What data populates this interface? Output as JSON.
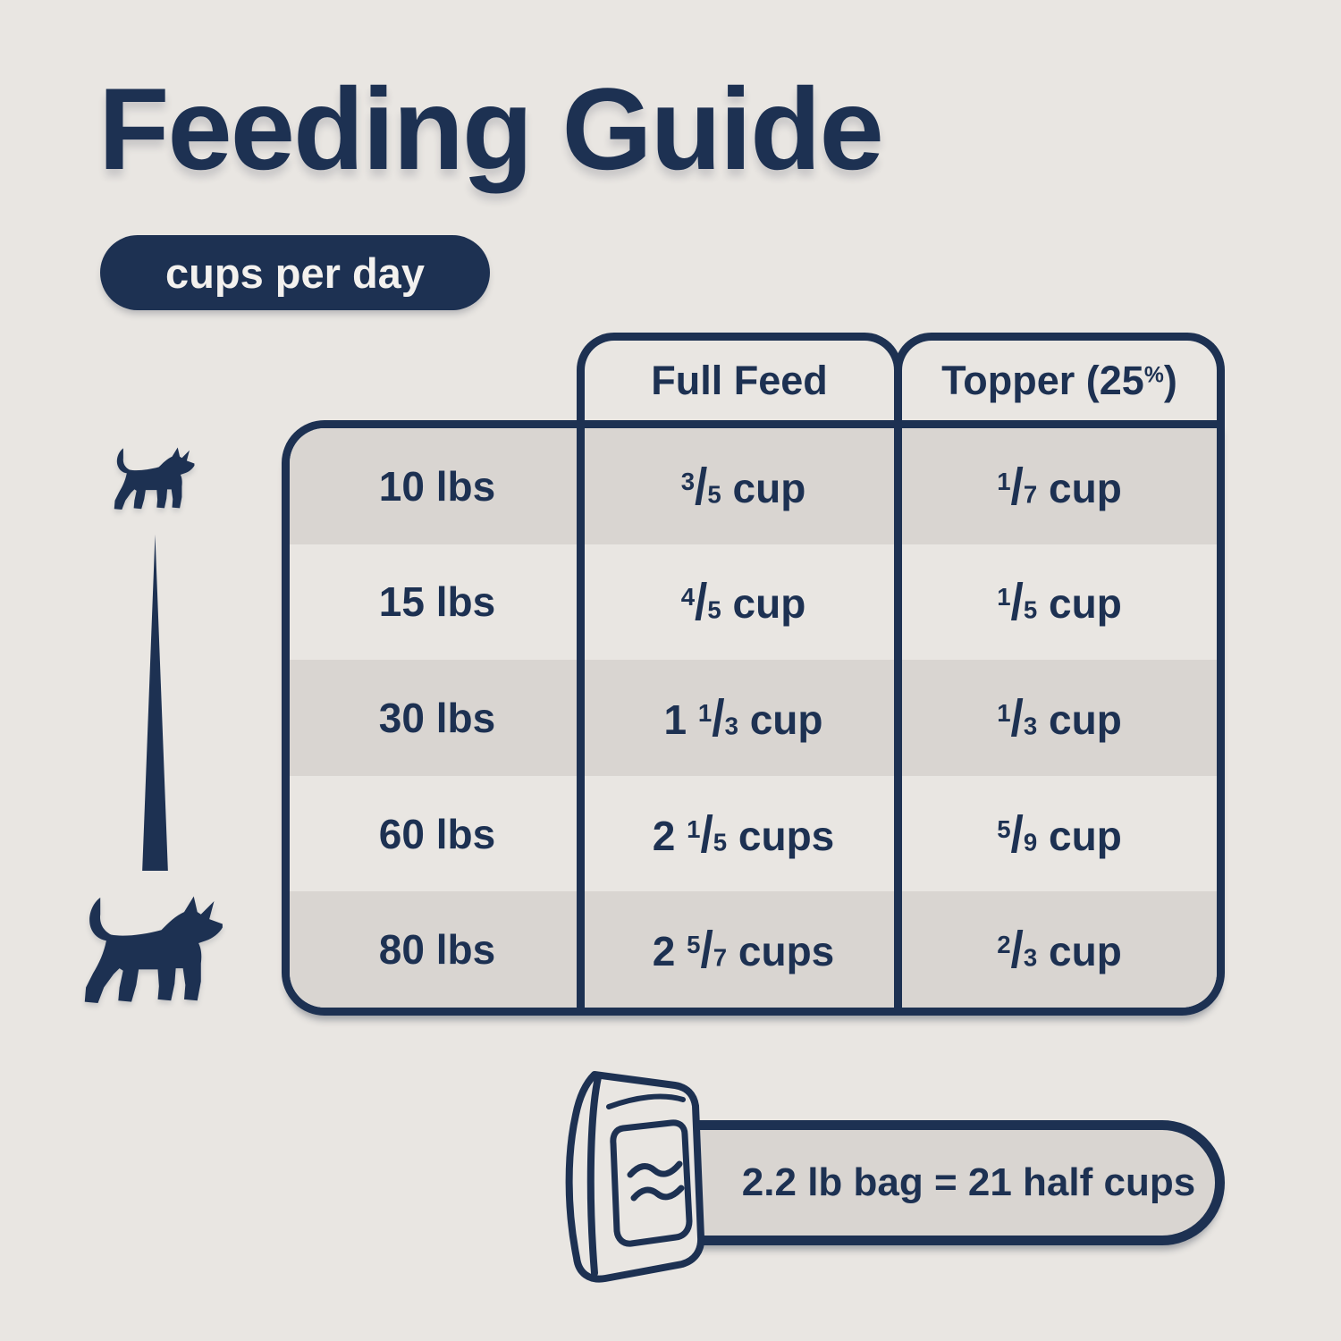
{
  "page": {
    "title": "Feeding Guide",
    "badge": "cups per day"
  },
  "table": {
    "col_headers": [
      "Full Feed",
      "Topper (25%)"
    ],
    "rows": [
      {
        "weight": "10 lbs",
        "full_feed": "3/5 cup",
        "topper": "1/7 cup"
      },
      {
        "weight": "15 lbs",
        "full_feed": "4/5 cup",
        "topper": "1/5 cup"
      },
      {
        "weight": "30 lbs",
        "full_feed": "1 1/3 cup",
        "topper": "1/3 cup"
      },
      {
        "weight": "60 lbs",
        "full_feed": "2 1/5 cups",
        "topper": "5/9 cup"
      },
      {
        "weight": "80 lbs",
        "full_feed": "2 5/7 cups",
        "topper": "2/3 cup"
      }
    ]
  },
  "footer": {
    "note": "2.2 lb bag = 21 half cups"
  },
  "icons": {
    "small_dog": "small-dog-icon",
    "large_dog": "large-dog-icon",
    "size_gradient": "size-gradient-line",
    "bag": "dog-food-bag-icon",
    "waves": "aroma-waves-icon"
  },
  "colors": {
    "navy": "#1d3152",
    "page_bg": "#e9e6e2",
    "row_gray": "#d9d5d1",
    "badge_text": "#f3f1ee"
  },
  "chart_data": {
    "type": "table",
    "title": "Feeding Guide",
    "subtitle": "cups per day",
    "categories": [
      "10 lbs",
      "15 lbs",
      "30 lbs",
      "60 lbs",
      "80 lbs"
    ],
    "series": [
      {
        "name": "Full Feed",
        "values": [
          "3/5 cup",
          "4/5 cup",
          "1 1/3 cup",
          "2 1/5 cups",
          "2 5/7 cups"
        ]
      },
      {
        "name": "Topper (25%)",
        "values": [
          "1/7 cup",
          "1/5 cup",
          "1/3 cup",
          "5/9 cup",
          "2/3 cup"
        ]
      }
    ],
    "annotations": [
      "2.2 lb bag = 21 half cups"
    ],
    "legend_position": "none",
    "grid": false
  }
}
